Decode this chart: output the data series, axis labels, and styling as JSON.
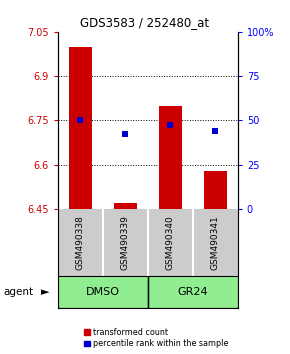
{
  "title": "GDS3583 / 252480_at",
  "samples": [
    "GSM490338",
    "GSM490339",
    "GSM490340",
    "GSM490341"
  ],
  "bar_values": [
    7.0,
    6.47,
    6.8,
    6.58
  ],
  "bar_base": 6.45,
  "percentile_values": [
    6.75,
    6.705,
    6.735,
    6.715
  ],
  "ylim_left": [
    6.45,
    7.05
  ],
  "ylim_right": [
    0,
    100
  ],
  "yticks_left": [
    6.45,
    6.6,
    6.75,
    6.9,
    7.05
  ],
  "ytick_labels_left": [
    "6.45",
    "6.6",
    "6.75",
    "6.9",
    "7.05"
  ],
  "yticks_right": [
    0,
    25,
    50,
    75,
    100
  ],
  "ytick_labels_right": [
    "0",
    "25",
    "50",
    "75",
    "100%"
  ],
  "hlines": [
    6.6,
    6.75,
    6.9
  ],
  "groups": [
    {
      "label": "DMSO",
      "indices": [
        0,
        1
      ],
      "color": "#90ee90"
    },
    {
      "label": "GR24",
      "indices": [
        2,
        3
      ],
      "color": "#90ee90"
    }
  ],
  "bar_color": "#cc0000",
  "dot_color": "#0000cc",
  "agent_label": "agent",
  "legend_items": [
    {
      "color": "#cc0000",
      "label": "transformed count"
    },
    {
      "color": "#0000cc",
      "label": "percentile rank within the sample"
    }
  ],
  "bar_width": 0.5,
  "sample_box_color": "#cccccc"
}
